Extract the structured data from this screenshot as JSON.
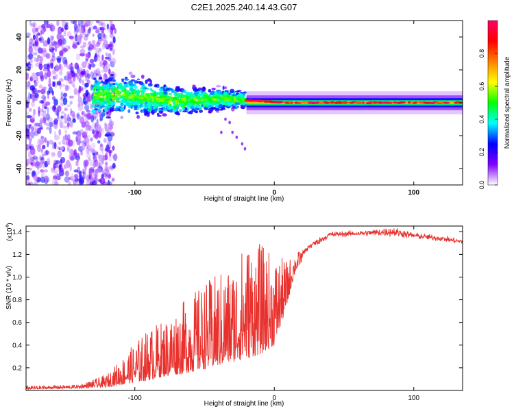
{
  "figure": {
    "title": "C2E1.2025.240.14.43.G07"
  },
  "chart_data": [
    {
      "id": "spectrogram",
      "type": "heatmap",
      "xlabel": "Height of straight line (km)",
      "ylabel": "Frequency (Hz)",
      "xlim": [
        -178,
        135
      ],
      "ylim": [
        -50,
        50
      ],
      "xticks": [
        "-100",
        "0",
        "100"
      ],
      "yticks": [
        "-40",
        "-20",
        "0",
        "20",
        "40"
      ],
      "colorbar": {
        "label": "Normalized spectral amplitude",
        "range": [
          0,
          1
        ],
        "ticks": [
          "0.0",
          "0.2",
          "0.4",
          "0.6",
          "0.8"
        ],
        "colormap": [
          "#ffffff",
          "#8000ff",
          "#0000ff",
          "#00ffff",
          "#00ff00",
          "#ffff00",
          "#ff8000",
          "#ff0000",
          "#ff0066"
        ]
      },
      "ridge": {
        "description": "Signal ridge: scattered noise below -120 km, broad band near 0 Hz from -130 to -20 km, narrow bright line near 0 Hz above -20 km",
        "noise_region_km": [
          -178,
          -122
        ],
        "broad_band_km": [
          -130,
          -20
        ],
        "narrow_line_km": [
          -20,
          135
        ],
        "center_frequency_hz": [
          {
            "x": -130,
            "y": 4
          },
          {
            "x": -110,
            "y": 5
          },
          {
            "x": -90,
            "y": 3
          },
          {
            "x": -70,
            "y": 1
          },
          {
            "x": -50,
            "y": 2
          },
          {
            "x": -30,
            "y": 2
          },
          {
            "x": -10,
            "y": 1
          },
          {
            "x": 10,
            "y": 0
          },
          {
            "x": 50,
            "y": 0
          },
          {
            "x": 100,
            "y": 0
          },
          {
            "x": 135,
            "y": 0
          }
        ]
      }
    },
    {
      "id": "snr",
      "type": "line",
      "xlabel": "Height of straight line (km)",
      "ylabel": "SNR (10 * v/v)",
      "y_multiplier": "(x10",
      "y_multiplier_exp": "4",
      "y_multiplier_close": ")",
      "xlim": [
        -178,
        135
      ],
      "ylim": [
        0,
        1.45
      ],
      "xticks": [
        "-100",
        "0",
        "100"
      ],
      "yticks": [
        "0.2",
        "0.4",
        "0.6",
        "0.8",
        "1.0",
        "1.2",
        "1.4"
      ],
      "color": "#e8302c",
      "series": [
        {
          "name": "SNR",
          "envelope": [
            {
              "x": -178,
              "lo": 0.01,
              "hi": 0.04
            },
            {
              "x": -140,
              "lo": 0.02,
              "hi": 0.05
            },
            {
              "x": -120,
              "lo": 0.03,
              "hi": 0.14
            },
            {
              "x": -110,
              "lo": 0.05,
              "hi": 0.28
            },
            {
              "x": -100,
              "lo": 0.07,
              "hi": 0.42
            },
            {
              "x": -90,
              "lo": 0.09,
              "hi": 0.55
            },
            {
              "x": -80,
              "lo": 0.12,
              "hi": 0.62
            },
            {
              "x": -60,
              "lo": 0.16,
              "hi": 0.85
            },
            {
              "x": -45,
              "lo": 0.2,
              "hi": 1.0
            },
            {
              "x": -30,
              "lo": 0.25,
              "hi": 1.12
            },
            {
              "x": -20,
              "lo": 0.28,
              "hi": 1.33
            },
            {
              "x": -10,
              "lo": 0.32,
              "hi": 1.3
            },
            {
              "x": 0,
              "lo": 0.4,
              "hi": 1.2
            },
            {
              "x": 8,
              "lo": 0.7,
              "hi": 1.15
            },
            {
              "x": 15,
              "lo": 1.05,
              "hi": 1.2
            },
            {
              "x": 25,
              "lo": 1.22,
              "hi": 1.32
            },
            {
              "x": 40,
              "lo": 1.33,
              "hi": 1.42
            },
            {
              "x": 60,
              "lo": 1.35,
              "hi": 1.42
            },
            {
              "x": 85,
              "lo": 1.33,
              "hi": 1.47
            },
            {
              "x": 100,
              "lo": 1.32,
              "hi": 1.41
            },
            {
              "x": 120,
              "lo": 1.3,
              "hi": 1.38
            },
            {
              "x": 135,
              "lo": 1.27,
              "hi": 1.35
            }
          ]
        }
      ]
    }
  ]
}
